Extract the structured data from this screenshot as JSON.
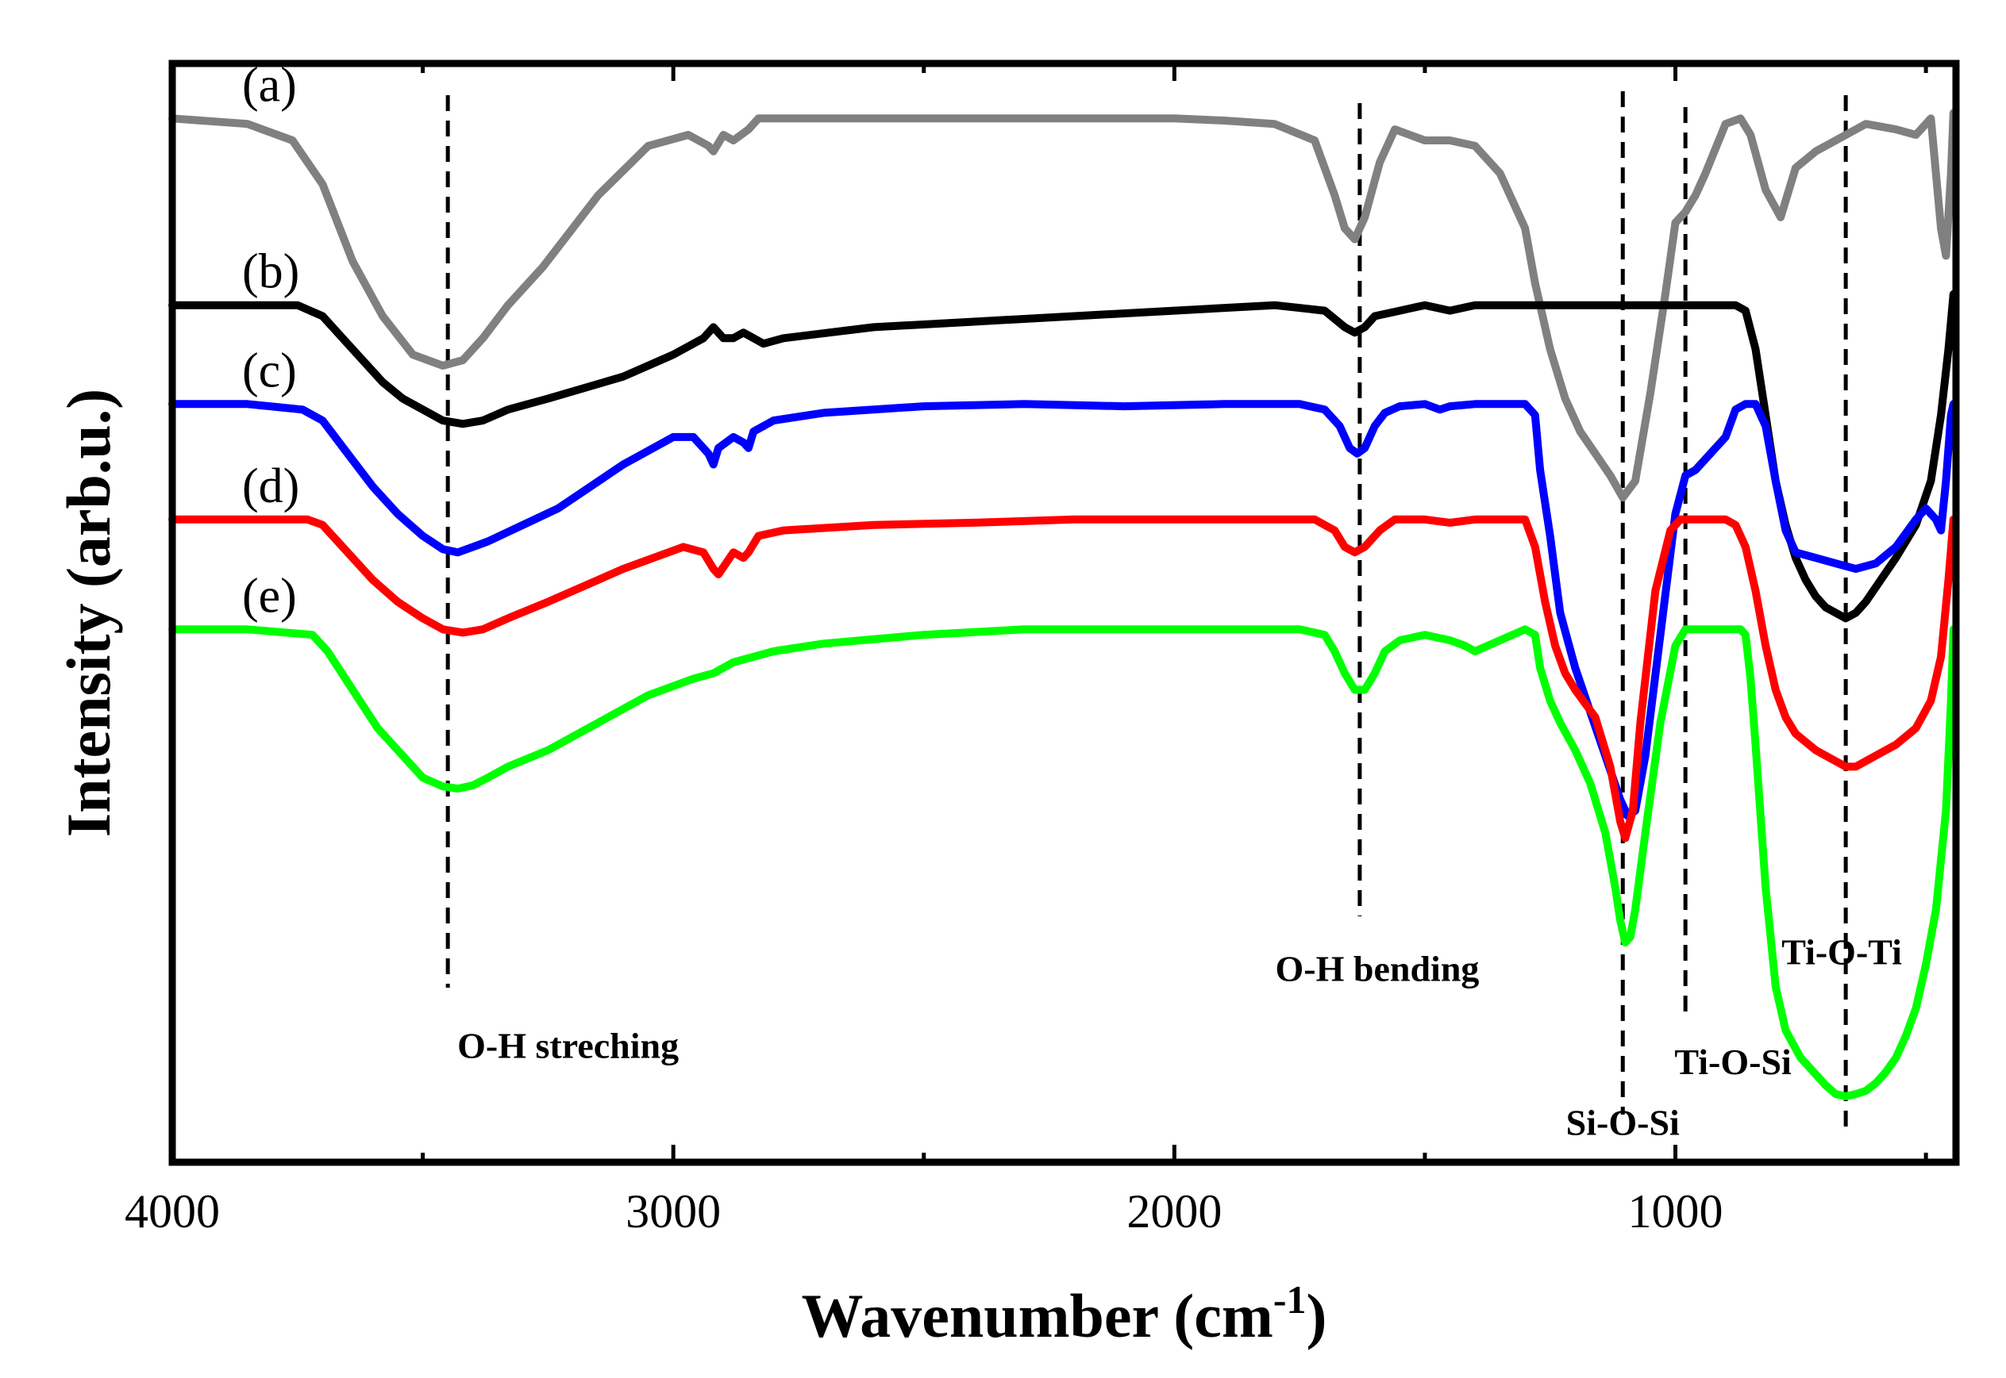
{
  "chart_data": {
    "type": "line",
    "title": "",
    "xlabel": "Wavenumber",
    "xlabel_unit": "(cm",
    "xlabel_unit_sup": "-1",
    "xlabel_unit_close": ")",
    "ylabel": "Intensity (arb.u.)",
    "xlim": [
      4000,
      440
    ],
    "x_reversed": true,
    "ylim": [
      0,
      10
    ],
    "y_ticks_shown": false,
    "grid": false,
    "x_ticks": [
      4000,
      3000,
      2000,
      1000
    ],
    "x_tick_labels": [
      "4000",
      "3000",
      "2000",
      "1000"
    ],
    "vertical_markers": [
      3450,
      1630,
      1105,
      980,
      660
    ],
    "annotations": [
      {
        "text": "O-H streching",
        "x": 3210,
        "y": 0.95
      },
      {
        "text": "O-H bending",
        "x": 1595,
        "y": 1.65
      },
      {
        "text": "Si-O-Si",
        "x": 1105,
        "y": 0.25
      },
      {
        "text": "Ti-O-Si",
        "x": 885,
        "y": 0.8
      },
      {
        "text": "Ti-O-Ti",
        "x": 668,
        "y": 1.8
      }
    ],
    "series": [
      {
        "name": "(a)",
        "color": "#808080",
        "x": [
          4000,
          3850,
          3760,
          3700,
          3640,
          3580,
          3520,
          3460,
          3420,
          3380,
          3330,
          3260,
          3150,
          3050,
          2970,
          2930,
          2920,
          2900,
          2880,
          2850,
          2830,
          2780,
          2600,
          2400,
          2200,
          2000,
          1900,
          1800,
          1720,
          1680,
          1660,
          1640,
          1620,
          1590,
          1560,
          1500,
          1450,
          1400,
          1350,
          1300,
          1280,
          1250,
          1220,
          1190,
          1160,
          1130,
          1105,
          1080,
          1050,
          1020,
          1000,
          980,
          960,
          940,
          900,
          870,
          850,
          820,
          790,
          760,
          720,
          680,
          620,
          560,
          520,
          490,
          470,
          460,
          450,
          445
        ],
        "y": [
          9.5,
          9.45,
          9.3,
          8.9,
          8.2,
          7.7,
          7.35,
          7.25,
          7.3,
          7.5,
          7.8,
          8.15,
          8.8,
          9.25,
          9.35,
          9.25,
          9.2,
          9.35,
          9.3,
          9.4,
          9.5,
          9.5,
          9.5,
          9.5,
          9.5,
          9.5,
          9.48,
          9.45,
          9.3,
          8.8,
          8.5,
          8.4,
          8.6,
          9.1,
          9.4,
          9.3,
          9.3,
          9.25,
          9.0,
          8.5,
          8.0,
          7.4,
          6.95,
          6.65,
          6.45,
          6.25,
          6.05,
          6.2,
          7.0,
          7.9,
          8.55,
          8.65,
          8.8,
          9.0,
          9.45,
          9.5,
          9.35,
          8.85,
          8.6,
          9.05,
          9.2,
          9.3,
          9.45,
          9.4,
          9.35,
          9.5,
          8.5,
          8.25,
          9.0,
          9.55
        ]
      },
      {
        "name": "(b)",
        "color": "#000000",
        "x": [
          4000,
          3850,
          3750,
          3700,
          3660,
          3620,
          3580,
          3540,
          3500,
          3460,
          3420,
          3380,
          3330,
          3250,
          3100,
          3000,
          2960,
          2940,
          2920,
          2900,
          2880,
          2860,
          2840,
          2820,
          2780,
          2600,
          2400,
          2200,
          2000,
          1800,
          1700,
          1660,
          1640,
          1620,
          1600,
          1550,
          1500,
          1450,
          1400,
          1350,
          1300,
          1200,
          1100,
          1000,
          900,
          880,
          860,
          840,
          820,
          800,
          780,
          760,
          740,
          720,
          700,
          680,
          660,
          640,
          620,
          590,
          560,
          520,
          490,
          470,
          455,
          445
        ],
        "y": [
          7.8,
          7.8,
          7.8,
          7.7,
          7.5,
          7.3,
          7.1,
          6.95,
          6.85,
          6.75,
          6.72,
          6.75,
          6.85,
          6.95,
          7.15,
          7.35,
          7.45,
          7.5,
          7.6,
          7.5,
          7.5,
          7.55,
          7.5,
          7.45,
          7.5,
          7.6,
          7.65,
          7.7,
          7.75,
          7.8,
          7.75,
          7.6,
          7.55,
          7.6,
          7.7,
          7.75,
          7.8,
          7.75,
          7.8,
          7.8,
          7.8,
          7.8,
          7.8,
          7.8,
          7.8,
          7.8,
          7.75,
          7.4,
          6.8,
          6.2,
          5.8,
          5.5,
          5.3,
          5.15,
          5.05,
          5.0,
          4.95,
          5.0,
          5.1,
          5.3,
          5.5,
          5.8,
          6.2,
          6.8,
          7.4,
          7.9
        ]
      },
      {
        "name": "(c)",
        "color": "#0000ff",
        "x": [
          4000,
          3850,
          3740,
          3700,
          3650,
          3600,
          3550,
          3500,
          3460,
          3430,
          3400,
          3370,
          3300,
          3230,
          3100,
          3000,
          2960,
          2930,
          2920,
          2910,
          2880,
          2860,
          2850,
          2840,
          2800,
          2700,
          2500,
          2300,
          2100,
          1900,
          1750,
          1700,
          1670,
          1650,
          1635,
          1620,
          1600,
          1580,
          1550,
          1500,
          1470,
          1450,
          1400,
          1300,
          1280,
          1270,
          1250,
          1230,
          1200,
          1170,
          1140,
          1110,
          1095,
          1080,
          1060,
          1030,
          1000,
          980,
          960,
          930,
          900,
          880,
          860,
          840,
          820,
          800,
          780,
          760,
          720,
          680,
          640,
          600,
          560,
          520,
          500,
          480,
          470,
          460,
          450,
          445
        ],
        "y": [
          6.9,
          6.9,
          6.85,
          6.75,
          6.45,
          6.15,
          5.9,
          5.7,
          5.58,
          5.55,
          5.6,
          5.65,
          5.8,
          5.95,
          6.35,
          6.6,
          6.6,
          6.45,
          6.35,
          6.5,
          6.6,
          6.55,
          6.5,
          6.65,
          6.75,
          6.82,
          6.88,
          6.9,
          6.88,
          6.9,
          6.9,
          6.85,
          6.7,
          6.5,
          6.45,
          6.5,
          6.7,
          6.82,
          6.88,
          6.9,
          6.85,
          6.88,
          6.9,
          6.9,
          6.8,
          6.3,
          5.7,
          5.0,
          4.5,
          4.1,
          3.7,
          3.3,
          3.15,
          3.2,
          3.7,
          4.8,
          5.9,
          6.25,
          6.3,
          6.45,
          6.6,
          6.85,
          6.9,
          6.9,
          6.7,
          6.2,
          5.75,
          5.55,
          5.5,
          5.45,
          5.4,
          5.45,
          5.6,
          5.85,
          5.95,
          5.85,
          5.75,
          6.2,
          6.8,
          6.9
        ]
      },
      {
        "name": "(d)",
        "color": "#ff0000",
        "x": [
          4000,
          3850,
          3730,
          3700,
          3650,
          3600,
          3550,
          3500,
          3460,
          3420,
          3380,
          3330,
          3250,
          3100,
          2980,
          2940,
          2920,
          2910,
          2880,
          2860,
          2850,
          2830,
          2780,
          2600,
          2400,
          2200,
          2000,
          1800,
          1720,
          1680,
          1660,
          1640,
          1620,
          1590,
          1560,
          1500,
          1450,
          1400,
          1300,
          1280,
          1260,
          1240,
          1220,
          1200,
          1160,
          1130,
          1110,
          1100,
          1085,
          1070,
          1040,
          1010,
          990,
          960,
          900,
          880,
          860,
          840,
          820,
          800,
          780,
          760,
          720,
          680,
          660,
          640,
          600,
          560,
          520,
          490,
          470,
          455,
          445
        ],
        "y": [
          5.85,
          5.85,
          5.85,
          5.8,
          5.55,
          5.3,
          5.1,
          4.95,
          4.85,
          4.82,
          4.85,
          4.95,
          5.1,
          5.4,
          5.6,
          5.55,
          5.4,
          5.35,
          5.55,
          5.5,
          5.55,
          5.7,
          5.75,
          5.8,
          5.82,
          5.85,
          5.85,
          5.85,
          5.85,
          5.75,
          5.6,
          5.55,
          5.6,
          5.75,
          5.85,
          5.85,
          5.82,
          5.85,
          5.85,
          5.6,
          5.1,
          4.7,
          4.45,
          4.3,
          4.05,
          3.6,
          3.1,
          2.95,
          3.2,
          4.0,
          5.2,
          5.75,
          5.85,
          5.85,
          5.85,
          5.8,
          5.6,
          5.2,
          4.7,
          4.3,
          4.05,
          3.9,
          3.75,
          3.65,
          3.6,
          3.6,
          3.7,
          3.8,
          3.95,
          4.2,
          4.6,
          5.3,
          5.85
        ]
      },
      {
        "name": "(e)",
        "color": "#00ff00",
        "x": [
          4000,
          3850,
          3720,
          3690,
          3640,
          3590,
          3540,
          3500,
          3460,
          3430,
          3400,
          3370,
          3330,
          3250,
          3150,
          3050,
          2960,
          2920,
          2880,
          2800,
          2700,
          2500,
          2300,
          2100,
          1900,
          1750,
          1700,
          1680,
          1660,
          1640,
          1620,
          1600,
          1580,
          1550,
          1500,
          1450,
          1420,
          1400,
          1300,
          1280,
          1270,
          1250,
          1230,
          1200,
          1170,
          1140,
          1120,
          1110,
          1100,
          1090,
          1080,
          1060,
          1030,
          1000,
          980,
          960,
          920,
          890,
          880,
          870,
          860,
          850,
          840,
          820,
          800,
          780,
          750,
          720,
          700,
          680,
          660,
          640,
          620,
          600,
          580,
          560,
          540,
          520,
          500,
          480,
          460,
          450,
          445
        ],
        "y": [
          4.85,
          4.85,
          4.8,
          4.65,
          4.3,
          3.95,
          3.7,
          3.5,
          3.42,
          3.4,
          3.43,
          3.5,
          3.6,
          3.75,
          4.0,
          4.25,
          4.4,
          4.45,
          4.55,
          4.65,
          4.72,
          4.8,
          4.85,
          4.85,
          4.85,
          4.85,
          4.8,
          4.65,
          4.45,
          4.3,
          4.3,
          4.45,
          4.65,
          4.75,
          4.8,
          4.75,
          4.7,
          4.65,
          4.85,
          4.8,
          4.5,
          4.2,
          4.0,
          3.75,
          3.45,
          3.0,
          2.5,
          2.2,
          2.0,
          2.05,
          2.3,
          3.0,
          4.0,
          4.7,
          4.85,
          4.85,
          4.85,
          4.85,
          4.85,
          4.85,
          4.8,
          4.4,
          3.8,
          2.5,
          1.6,
          1.2,
          0.95,
          0.8,
          0.7,
          0.62,
          0.6,
          0.62,
          0.65,
          0.72,
          0.82,
          0.95,
          1.15,
          1.4,
          1.8,
          2.3,
          3.2,
          4.2,
          4.85
        ]
      }
    ]
  }
}
